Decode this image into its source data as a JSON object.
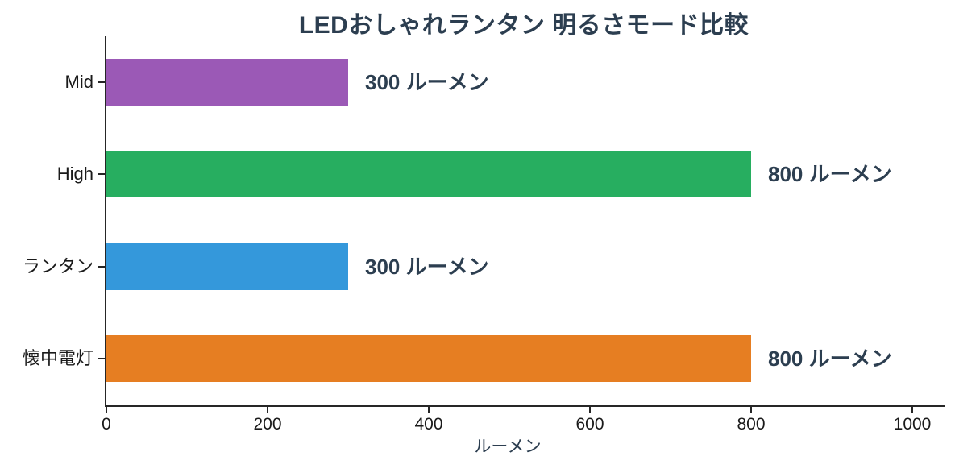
{
  "chart_data": {
    "type": "bar",
    "orientation": "horizontal",
    "title": "LEDおしゃれランタン 明るさモード比較",
    "xlabel": "ルーメン",
    "xlim": [
      0,
      1000
    ],
    "xticks": [
      0,
      200,
      400,
      600,
      800,
      1000
    ],
    "categories": [
      "Mid",
      "High",
      "ランタン",
      "懐中電灯"
    ],
    "values": [
      300,
      800,
      300,
      800
    ],
    "value_labels": [
      "300 ルーメン",
      "800 ルーメン",
      "300 ルーメン",
      "800 ルーメン"
    ],
    "bar_colors": [
      "#9b59b6",
      "#27ae60",
      "#3498db",
      "#e67e22"
    ],
    "grid": false,
    "legend": false
  },
  "colors": {
    "title": "#2c3e50",
    "value_label": "#2c3e50",
    "axis_label": "#2c3e50",
    "tick_label": "#1a1a1a",
    "category_label": "#1a1a1a",
    "axis_line": "#262626",
    "background": "#ffffff"
  }
}
